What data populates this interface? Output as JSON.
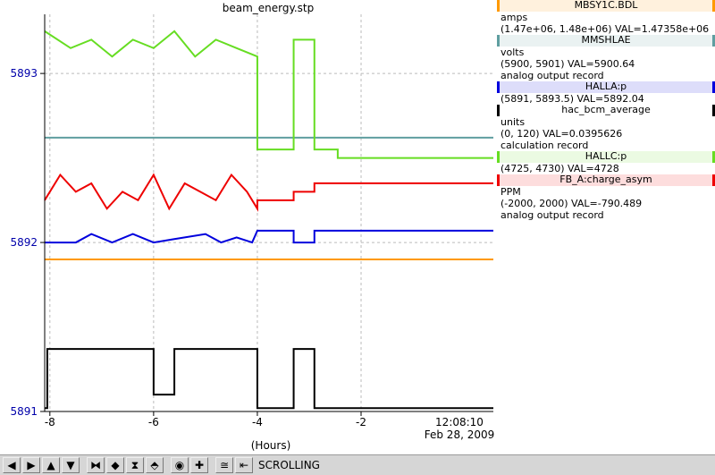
{
  "toolbar": {
    "status_label": "SCROLLING",
    "buttons": [
      "arrow-left-icon",
      "arrow-right-icon",
      "arrow-up-icon",
      "arrow-down-icon",
      "zoom-in-x-icon",
      "zoom-out-x-icon",
      "zoom-in-y-icon",
      "zoom-out-y-icon",
      "reset-icon",
      "add-icon",
      "config-icon",
      "export-icon"
    ]
  },
  "legend": [
    {
      "name": "MBSY1C.BDL",
      "color": "#ff9900",
      "lines": [
        "amps",
        "(1.47e+06, 1.48e+06)  VAL=1.47358e+06"
      ]
    },
    {
      "name": "MMSHLAE",
      "color": "#5f9ea0",
      "lines": [
        "volts",
        "(5900, 5901)  VAL=5900.64",
        "analog output record"
      ]
    },
    {
      "name": "HALLA:p",
      "color": "#0000dd",
      "lines": [
        "(5891, 5893.5) VAL=5892.04"
      ]
    },
    {
      "name": "hac_bcm_average",
      "color": "#000000",
      "lines": [
        "units",
        "(0, 120) VAL=0.0395626",
        "calculation record"
      ]
    },
    {
      "name": "HALLC:p",
      "color": "#66dd22",
      "lines": [
        "(4725, 4730) VAL=4728"
      ]
    },
    {
      "name": "FB_A:charge_asym",
      "color": "#ee0000",
      "lines": [
        "PPM",
        "(-2000, 2000) VAL=-790.489",
        "analog output record"
      ]
    }
  ],
  "chart_data": {
    "type": "line",
    "title": "beam_energy.stp",
    "xlabel": "(Hours)",
    "xlim": [
      -8.1,
      0.55
    ],
    "ylim": [
      5891,
      5893.35
    ],
    "x_ticks": [
      -8,
      -6,
      -4,
      -2
    ],
    "x_tick_labels": [
      "-8",
      "-6",
      "-4",
      "-2"
    ],
    "y_ticks": [
      5891,
      5892,
      5893
    ],
    "y_tick_labels": [
      "5891",
      "5892",
      "5893"
    ],
    "end_time_label": "12:08:10",
    "end_date_label": "Feb 28, 2009",
    "grid": true,
    "series": [
      {
        "name": "MBSY1C.BDL",
        "color": "#ff9900",
        "x": [
          -8.1,
          0.55
        ],
        "y": [
          5891.9,
          5891.9
        ]
      },
      {
        "name": "MMSHLAE",
        "color": "#5f9ea0",
        "x": [
          -8.1,
          -4.0,
          -4.0,
          0.55
        ],
        "y": [
          5892.62,
          5892.62,
          5892.62,
          5892.62
        ]
      },
      {
        "name": "HALLA:p",
        "color": "#0000dd",
        "x": [
          -8.1,
          -7.5,
          -7.2,
          -6.8,
          -6.4,
          -6.0,
          -5.6,
          -5.0,
          -4.7,
          -4.4,
          -4.1,
          -4.0,
          -3.3,
          -3.3,
          -2.9,
          -2.9,
          0.55
        ],
        "y": [
          5892.0,
          5892.0,
          5892.05,
          5892.0,
          5892.05,
          5892.0,
          5892.02,
          5892.05,
          5892.0,
          5892.03,
          5892.0,
          5892.07,
          5892.07,
          5892.0,
          5892.0,
          5892.07,
          5892.07
        ]
      },
      {
        "name": "hac_bcm_average",
        "color": "#000000",
        "x": [
          -8.1,
          -8.05,
          -8.05,
          -6.0,
          -6.0,
          -5.6,
          -5.6,
          -4.7,
          -4.7,
          -4.0,
          -4.0,
          -3.3,
          -3.3,
          -2.9,
          -2.9,
          0.55
        ],
        "y": [
          5891.02,
          5891.02,
          5891.37,
          5891.37,
          5891.1,
          5891.1,
          5891.37,
          5891.37,
          5891.37,
          5891.37,
          5891.02,
          5891.02,
          5891.37,
          5891.37,
          5891.02,
          5891.02
        ]
      },
      {
        "name": "HALLC:p",
        "color": "#66dd22",
        "x": [
          -8.1,
          -7.6,
          -7.2,
          -6.8,
          -6.4,
          -6.0,
          -5.6,
          -5.2,
          -4.8,
          -4.4,
          -4.0,
          -4.0,
          -3.3,
          -3.3,
          -2.9,
          -2.9,
          -2.45,
          -2.45,
          0.55
        ],
        "y": [
          5893.25,
          5893.15,
          5893.2,
          5893.1,
          5893.2,
          5893.15,
          5893.25,
          5893.1,
          5893.2,
          5893.15,
          5893.1,
          5892.55,
          5892.55,
          5893.2,
          5893.2,
          5892.55,
          5892.55,
          5892.5,
          5892.5
        ]
      },
      {
        "name": "FB_A:charge_asym",
        "color": "#ee0000",
        "x": [
          -8.1,
          -7.8,
          -7.5,
          -7.2,
          -6.9,
          -6.6,
          -6.3,
          -6.0,
          -5.7,
          -5.4,
          -5.1,
          -4.8,
          -4.5,
          -4.2,
          -4.0,
          -4.0,
          -3.3,
          -3.3,
          -2.9,
          -2.9,
          0.55
        ],
        "y": [
          5892.25,
          5892.4,
          5892.3,
          5892.35,
          5892.2,
          5892.3,
          5892.25,
          5892.4,
          5892.2,
          5892.35,
          5892.3,
          5892.25,
          5892.4,
          5892.3,
          5892.2,
          5892.25,
          5892.25,
          5892.3,
          5892.3,
          5892.35,
          5892.35
        ]
      }
    ]
  }
}
